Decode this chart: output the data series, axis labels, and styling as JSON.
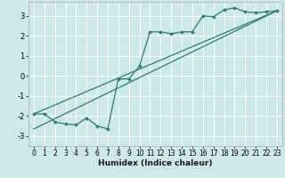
{
  "xlabel": "Humidex (Indice chaleur)",
  "bg_color": "#cce8e8",
  "grid_color": "#ffffff",
  "line_color": "#2d7d6e",
  "xlim": [
    -0.5,
    23.5
  ],
  "ylim": [
    -3.5,
    3.7
  ],
  "xticks": [
    0,
    1,
    2,
    3,
    4,
    5,
    6,
    7,
    8,
    9,
    10,
    11,
    12,
    13,
    14,
    15,
    16,
    17,
    18,
    19,
    20,
    21,
    22,
    23
  ],
  "yticks": [
    -3,
    -2,
    -1,
    0,
    1,
    2,
    3
  ],
  "line1_x": [
    0,
    1,
    2,
    3,
    4,
    5,
    6,
    7,
    8,
    9,
    10,
    11,
    12,
    13,
    14,
    15,
    16,
    17,
    18,
    19,
    20,
    21,
    22,
    23
  ],
  "line1_y": [
    -1.9,
    -1.9,
    -2.3,
    -2.4,
    -2.45,
    -2.1,
    -2.5,
    -2.65,
    -0.15,
    -0.15,
    0.5,
    2.2,
    2.2,
    2.1,
    2.2,
    2.2,
    3.0,
    2.95,
    3.3,
    3.4,
    3.2,
    3.15,
    3.2,
    3.25
  ],
  "line2_x": [
    0,
    23
  ],
  "line2_y": [
    -1.9,
    3.25
  ],
  "line3_x": [
    0,
    23
  ],
  "line3_y": [
    -2.65,
    3.25
  ],
  "xlabel_fontsize": 6.5,
  "tick_fontsize": 5.5
}
